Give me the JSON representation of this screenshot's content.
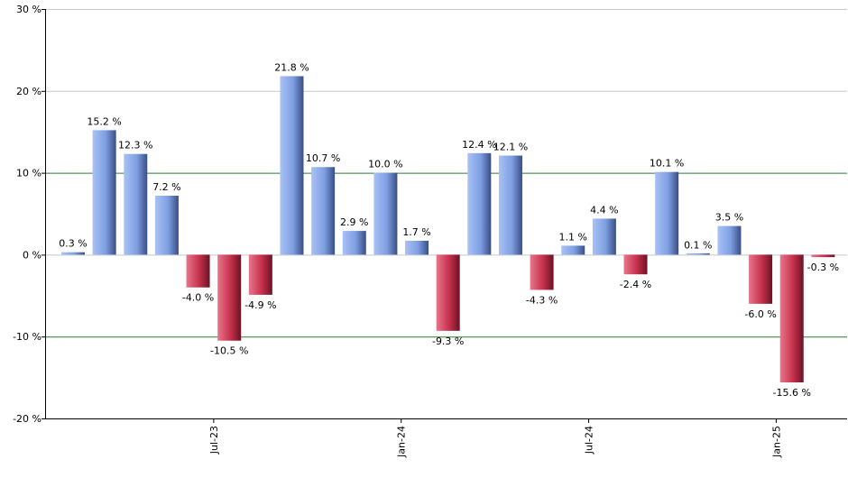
{
  "chart_data": {
    "type": "bar",
    "title": "",
    "xlabel": "",
    "ylabel": "",
    "ylim": [
      -20,
      30
    ],
    "y_ticks": [
      "30 %",
      "20 %",
      "10 %",
      "0 %",
      "-10 %",
      "-20 %"
    ],
    "y_tick_values": [
      30,
      20,
      10,
      0,
      -10,
      -20
    ],
    "x_tick_labels": [
      "Jul-23",
      "Jan-24",
      "Jul-24",
      "Jan-25"
    ],
    "x_tick_positions": [
      5,
      11,
      17,
      23
    ],
    "grid": true,
    "highlight_lines": [
      10,
      -10
    ],
    "colors": {
      "positive": "#7a9ee8",
      "negative": "#c8304c",
      "grid": "#c8c8c8",
      "highlight_grid": "#2e7d32",
      "axis": "#000000"
    },
    "values": [
      0.3,
      15.2,
      12.3,
      7.2,
      -4.0,
      -10.5,
      -4.9,
      21.8,
      10.7,
      2.9,
      10.0,
      1.7,
      -9.3,
      12.4,
      12.1,
      -4.3,
      1.1,
      4.4,
      -2.4,
      10.1,
      0.1,
      3.5,
      -6.0,
      -15.6,
      -0.3
    ],
    "labels": [
      "0.3 %",
      "15.2 %",
      "12.3 %",
      "7.2 %",
      "-4.0 %",
      "-10.5 %",
      "-4.9 %",
      "21.8 %",
      "10.7 %",
      "2.9 %",
      "10.0 %",
      "1.7 %",
      "-9.3 %",
      "12.4 %",
      "12.1 %",
      "-4.3 %",
      "1.1 %",
      "4.4 %",
      "-2.4 %",
      "10.1 %",
      "0.1 %",
      "3.5 %",
      "-6.0 %",
      "-15.6 %",
      "-0.3 %"
    ]
  }
}
